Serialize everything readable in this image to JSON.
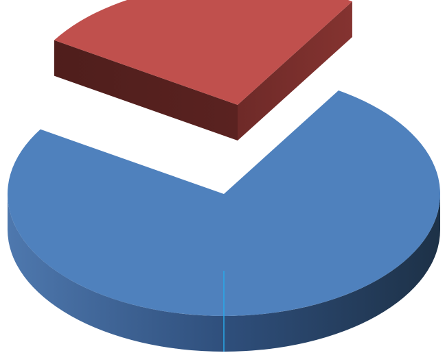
{
  "chart_data": {
    "type": "pie",
    "style": "3d-exploded",
    "slices": [
      {
        "value": 75,
        "color": "#4F81BD",
        "exploded": false
      },
      {
        "value": 25,
        "color": "#C0504D",
        "exploded": true
      }
    ],
    "legend": "none"
  }
}
